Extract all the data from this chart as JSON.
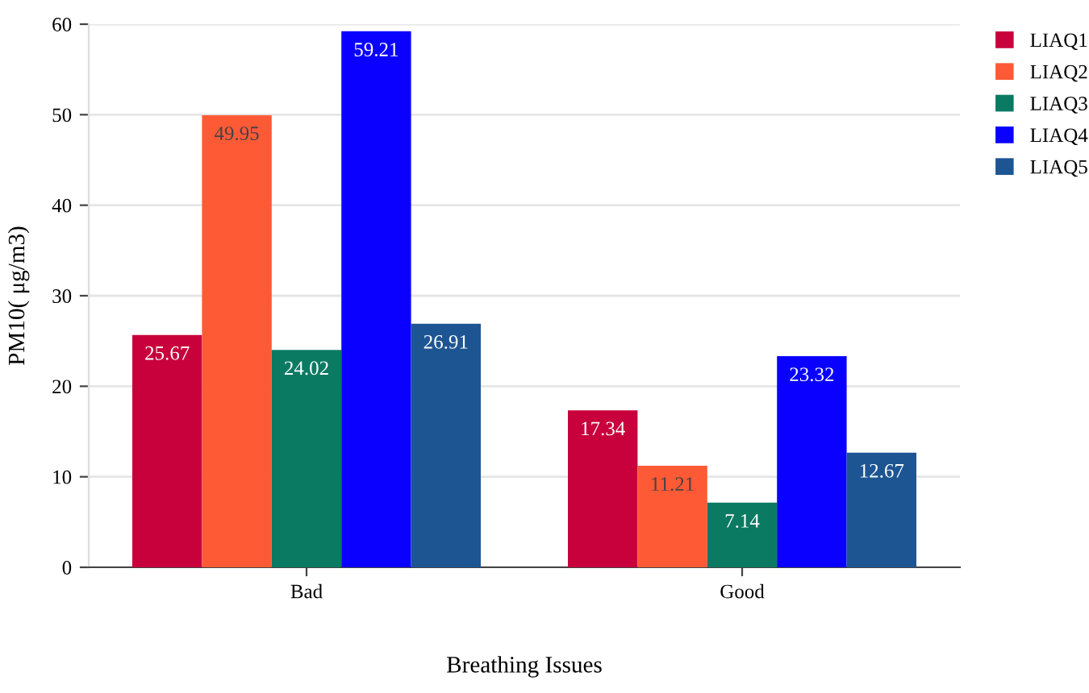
{
  "chart_data": {
    "type": "bar",
    "xlabel": "Breathing Issues",
    "ylabel": "PM10( μg/m3)",
    "categories": [
      "Bad",
      "Good"
    ],
    "series": [
      {
        "name": "LIAQ1",
        "color": "#c8003c",
        "values": [
          25.67,
          17.34
        ]
      },
      {
        "name": "LIAQ2",
        "color": "#ff5a36",
        "values": [
          49.95,
          11.21
        ]
      },
      {
        "name": "LIAQ3",
        "color": "#0b7a63",
        "values": [
          24.02,
          7.14
        ]
      },
      {
        "name": "LIAQ4",
        "color": "#0a00ff",
        "values": [
          59.21,
          23.32
        ]
      },
      {
        "name": "LIAQ5",
        "color": "#1d5593",
        "values": [
          26.91,
          12.67
        ]
      }
    ],
    "ylim": [
      0,
      60
    ],
    "yticks": [
      0,
      10,
      20,
      30,
      40,
      50,
      60
    ],
    "grid": "y",
    "legend": "top right",
    "data_labels": true
  }
}
